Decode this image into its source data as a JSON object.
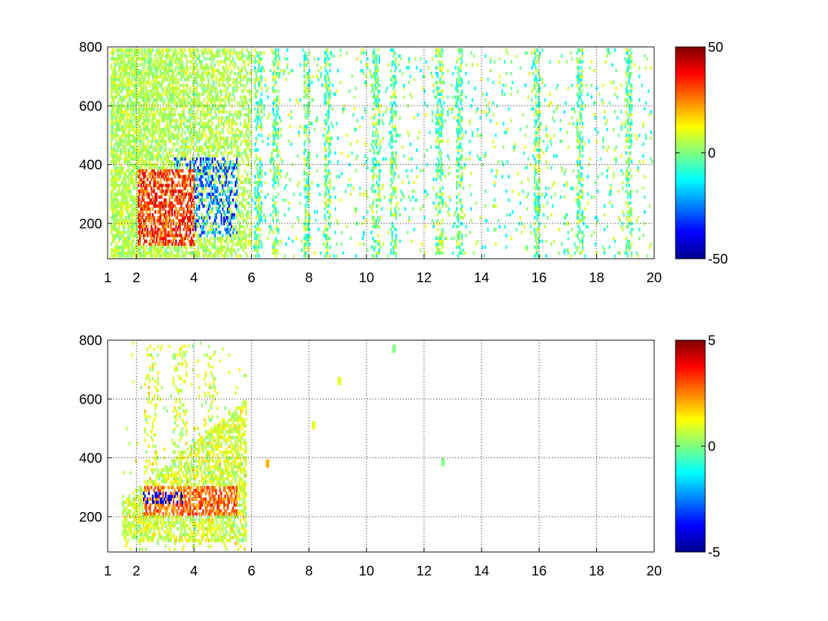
{
  "chart_data": [
    {
      "type": "heatmap",
      "title": "",
      "xlabel": "",
      "ylabel": "",
      "xlim": [
        1,
        20
      ],
      "ylim": [
        80,
        800
      ],
      "x_ticks": [
        1,
        2,
        4,
        6,
        8,
        10,
        12,
        14,
        16,
        18,
        20
      ],
      "y_ticks": [
        200,
        400,
        600,
        800
      ],
      "grid": true,
      "grid_style": "dotted",
      "colormap": "jet",
      "clim": [
        -50,
        50
      ],
      "colorbar_ticks": [
        -50,
        0,
        50
      ],
      "colorbar_location": "right",
      "description_of_pattern": {
        "dense_region_x": [
          1,
          6
        ],
        "positive_cluster": {
          "x": [
            2,
            4
          ],
          "y": [
            120,
            380
          ],
          "value_approx": 40
        },
        "negative_cluster": {
          "x": [
            3.3,
            5.5
          ],
          "y": [
            150,
            420
          ],
          "value_approx": -35
        },
        "sparse_columns_x": [
          6.2,
          6.8,
          7.9,
          8.6,
          10.3,
          10.9,
          12.5,
          13.2,
          15.9,
          17.4,
          19.1
        ],
        "sparse_value_range": [
          -15,
          12
        ]
      }
    },
    {
      "type": "heatmap",
      "title": "",
      "xlabel": "",
      "ylabel": "",
      "xlim": [
        1,
        20
      ],
      "ylim": [
        80,
        800
      ],
      "x_ticks": [
        1,
        2,
        4,
        6,
        8,
        10,
        12,
        14,
        16,
        18,
        20
      ],
      "y_ticks": [
        200,
        400,
        600,
        800
      ],
      "grid": true,
      "grid_style": "dotted",
      "colormap": "jet",
      "clim": [
        -5,
        5
      ],
      "colorbar_ticks": [
        -5,
        0,
        5
      ],
      "colorbar_location": "right",
      "description_of_pattern": {
        "dense_region_x": [
          1.5,
          5.8
        ],
        "positive_band": {
          "x": [
            2.2,
            5.5
          ],
          "y": [
            200,
            300
          ],
          "value_approx": 3
        },
        "negative_band": {
          "x": [
            2.2,
            3.6
          ],
          "y": [
            240,
            280
          ],
          "value_approx": -5
        },
        "isolated_points": [
          {
            "x": 6.5,
            "y": 380,
            "value": 2
          },
          {
            "x": 8.1,
            "y": 510,
            "value": 1
          },
          {
            "x": 9.0,
            "y": 660,
            "value": 1
          },
          {
            "x": 10.9,
            "y": 770,
            "value": 0
          },
          {
            "x": 12.6,
            "y": 385,
            "value": 0
          }
        ]
      }
    }
  ]
}
